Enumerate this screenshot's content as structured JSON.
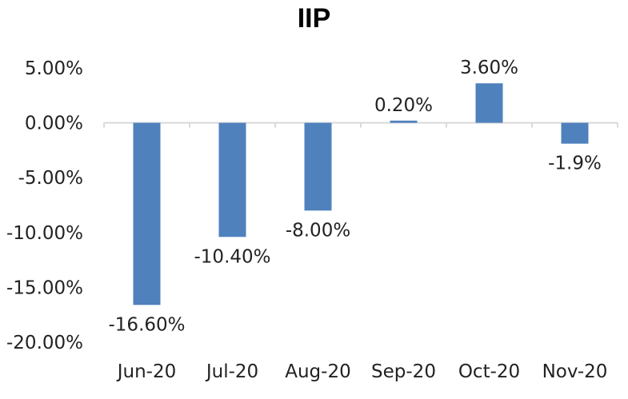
{
  "chart_data": {
    "type": "bar",
    "title": "IIP",
    "xlabel": "",
    "ylabel": "",
    "categories": [
      "Jun-20",
      "Jul-20",
      "Aug-20",
      "Sep-20",
      "Oct-20",
      "Nov-20"
    ],
    "values": [
      -16.6,
      -10.4,
      -8.0,
      0.2,
      3.6,
      -1.9
    ],
    "data_labels": [
      "-16.60%",
      "-10.40%",
      "-8.00%",
      "0.20%",
      "3.60%",
      "-1.9%"
    ],
    "yticks": [
      5,
      0,
      -5,
      -10,
      -15,
      -20
    ],
    "ytick_labels": [
      "5.00%",
      "0.00%",
      "-5.00%",
      "-10.00%",
      "-15.00%",
      "-20.00%"
    ],
    "ylim": [
      -20,
      5
    ],
    "grid": false,
    "legend": "none",
    "colors": {
      "bar": "#4f81bd",
      "axis": "#d9d9d9"
    }
  }
}
